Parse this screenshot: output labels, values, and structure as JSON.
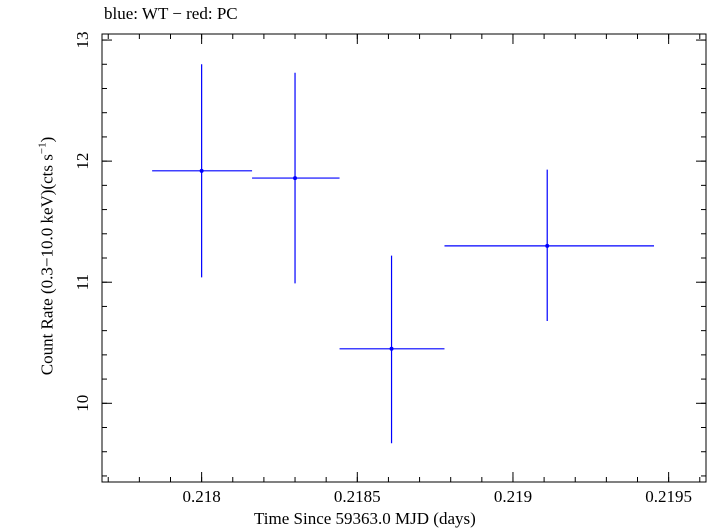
{
  "chart_data": {
    "type": "scatter",
    "title": "blue: WT − red: PC",
    "xlabel": "Time Since 59363.0 MJD (days)",
    "ylabel_main": "Count Rate (0.3−10.0 keV)(cts s",
    "ylabel_sup": "−1",
    "ylabel_close": ")",
    "xlim": [
      0.21768,
      0.21962
    ],
    "ylim": [
      9.35,
      13.05
    ],
    "x_ticks": [
      {
        "value": 0.218,
        "label": "0.218"
      },
      {
        "value": 0.2185,
        "label": "0.2185"
      },
      {
        "value": 0.219,
        "label": "0.219"
      },
      {
        "value": 0.2195,
        "label": "0.2195"
      }
    ],
    "x_minor_step": 0.0001,
    "y_ticks": [
      {
        "value": 10,
        "label": "10"
      },
      {
        "value": 11,
        "label": "11"
      },
      {
        "value": 12,
        "label": "12"
      },
      {
        "value": 13,
        "label": "13"
      }
    ],
    "y_minor_step": 0.2,
    "series": [
      {
        "name": "WT",
        "color": "#0000ff",
        "points": [
          {
            "x": 0.218,
            "y": 11.92,
            "xlo": 0.217841,
            "xhi": 0.218162,
            "ylo": 11.04,
            "yhi": 12.8
          },
          {
            "x": 0.2183,
            "y": 11.86,
            "xlo": 0.218162,
            "xhi": 0.218443,
            "ylo": 10.99,
            "yhi": 12.73
          },
          {
            "x": 0.21861,
            "y": 10.45,
            "xlo": 0.218443,
            "xhi": 0.21878,
            "ylo": 9.67,
            "yhi": 11.22
          },
          {
            "x": 0.21911,
            "y": 11.3,
            "xlo": 0.21878,
            "xhi": 0.219453,
            "ylo": 10.68,
            "yhi": 11.93
          }
        ]
      }
    ]
  }
}
